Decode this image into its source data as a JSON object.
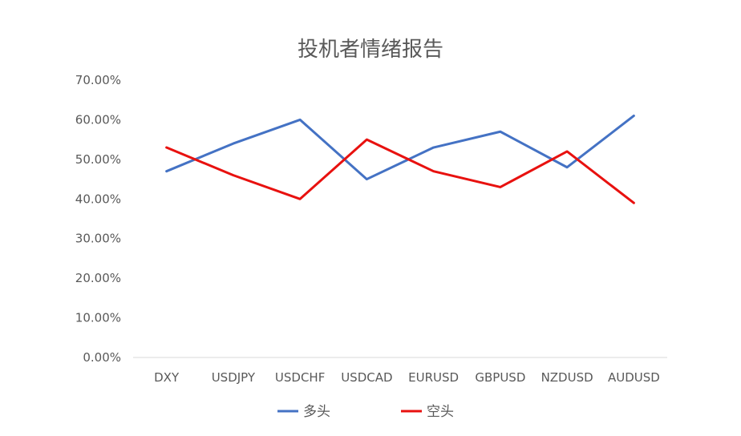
{
  "chart_data": {
    "type": "line",
    "title": "投机者情绪报告",
    "categories": [
      "DXY",
      "USDJPY",
      "USDCHF",
      "USDCAD",
      "EURUSD",
      "GBPUSD",
      "NZDUSD",
      "AUDUSD"
    ],
    "series": [
      {
        "name": "多头",
        "color": "#4472C4",
        "values": [
          0.47,
          0.54,
          0.6,
          0.45,
          0.53,
          0.57,
          0.48,
          0.61
        ]
      },
      {
        "name": "空头",
        "color": "#E8110F",
        "values": [
          0.53,
          0.46,
          0.4,
          0.55,
          0.47,
          0.43,
          0.52,
          0.39
        ]
      }
    ],
    "yticks": [
      "0.00%",
      "10.00%",
      "20.00%",
      "30.00%",
      "40.00%",
      "50.00%",
      "60.00%",
      "70.00%"
    ],
    "ylim": [
      0,
      0.7
    ],
    "legend_position": "bottom",
    "grid": false
  }
}
